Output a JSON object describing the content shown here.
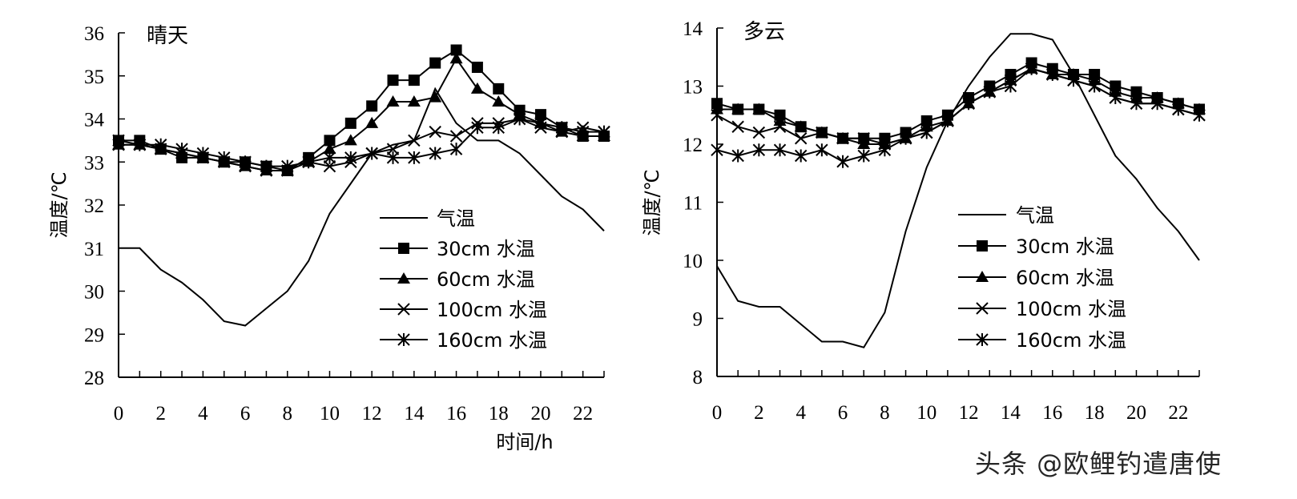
{
  "watermark": "头条 @欧鲤钓遣唐使",
  "chart_data": [
    {
      "type": "line",
      "title": "晴天",
      "xlabel": "时间/h",
      "ylabel": "温度/℃",
      "xlim": [
        0,
        23
      ],
      "ylim": [
        28,
        36
      ],
      "xticks": [
        0,
        2,
        4,
        6,
        8,
        10,
        12,
        14,
        16,
        18,
        20,
        22
      ],
      "yticks": [
        28,
        29,
        30,
        31,
        32,
        33,
        34,
        35,
        36
      ],
      "x": [
        0,
        1,
        2,
        3,
        4,
        5,
        6,
        7,
        8,
        9,
        10,
        11,
        12,
        13,
        14,
        15,
        16,
        17,
        18,
        19,
        20,
        21,
        22,
        23
      ],
      "legend_position": "center-right",
      "series": [
        {
          "name": "气温",
          "marker": "none",
          "values": [
            31.0,
            31.0,
            30.5,
            30.2,
            29.8,
            29.3,
            29.2,
            29.6,
            30.0,
            30.7,
            31.8,
            32.5,
            33.2,
            33.4,
            33.5,
            34.7,
            33.9,
            33.5,
            33.5,
            33.2,
            32.7,
            32.2,
            31.9,
            31.4
          ]
        },
        {
          "name": "30cm 水温",
          "marker": "square",
          "values": [
            33.5,
            33.5,
            33.3,
            33.1,
            33.1,
            33.0,
            33.0,
            32.9,
            32.8,
            33.1,
            33.5,
            33.9,
            34.3,
            34.9,
            34.9,
            35.3,
            35.6,
            35.2,
            34.7,
            34.2,
            34.1,
            33.8,
            33.6,
            33.6
          ]
        },
        {
          "name": "60cm 水温",
          "marker": "triangle",
          "values": [
            33.4,
            33.4,
            33.3,
            33.2,
            33.1,
            33.0,
            32.9,
            32.8,
            32.8,
            33.0,
            33.3,
            33.5,
            33.9,
            34.4,
            34.4,
            34.5,
            35.4,
            34.7,
            34.4,
            34.1,
            33.9,
            33.7,
            33.6,
            33.6
          ]
        },
        {
          "name": "100cm 水温",
          "marker": "x",
          "values": [
            33.5,
            33.4,
            33.3,
            33.2,
            33.1,
            33.0,
            32.9,
            32.8,
            32.8,
            33.0,
            32.9,
            33.0,
            33.2,
            33.3,
            33.5,
            33.7,
            33.6,
            33.9,
            33.9,
            34.0,
            33.8,
            33.7,
            33.8,
            33.7
          ]
        },
        {
          "name": "160cm 水温",
          "marker": "asterisk",
          "values": [
            33.4,
            33.4,
            33.4,
            33.3,
            33.2,
            33.1,
            33.0,
            32.9,
            32.9,
            33.0,
            33.1,
            33.1,
            33.2,
            33.1,
            33.1,
            33.2,
            33.3,
            33.8,
            33.8,
            34.0,
            33.9,
            33.8,
            33.7,
            33.7
          ]
        }
      ]
    },
    {
      "type": "line",
      "title": "多云",
      "xlabel": "",
      "ylabel": "温度/℃",
      "xlim": [
        0,
        23
      ],
      "ylim": [
        8,
        14
      ],
      "xticks": [
        0,
        2,
        4,
        6,
        8,
        10,
        12,
        14,
        16,
        18,
        20,
        22
      ],
      "yticks": [
        8,
        9,
        10,
        11,
        12,
        13,
        14
      ],
      "x": [
        0,
        1,
        2,
        3,
        4,
        5,
        6,
        7,
        8,
        9,
        10,
        11,
        12,
        13,
        14,
        15,
        16,
        17,
        18,
        19,
        20,
        21,
        22,
        23
      ],
      "legend_position": "center-right",
      "series": [
        {
          "name": "气温",
          "marker": "none",
          "values": [
            9.9,
            9.3,
            9.2,
            9.2,
            8.9,
            8.6,
            8.6,
            8.5,
            9.1,
            10.5,
            11.6,
            12.4,
            13.0,
            13.5,
            13.9,
            13.9,
            13.8,
            13.2,
            12.5,
            11.8,
            11.4,
            10.9,
            10.5,
            10.0
          ]
        },
        {
          "name": "30cm 水温",
          "marker": "square",
          "values": [
            12.7,
            12.6,
            12.6,
            12.5,
            12.3,
            12.2,
            12.1,
            12.1,
            12.1,
            12.2,
            12.4,
            12.5,
            12.8,
            13.0,
            13.2,
            13.4,
            13.3,
            13.2,
            13.2,
            13.0,
            12.9,
            12.8,
            12.7,
            12.6
          ]
        },
        {
          "name": "60cm 水温",
          "marker": "triangle",
          "values": [
            12.6,
            12.6,
            12.6,
            12.4,
            12.3,
            12.2,
            12.1,
            12.0,
            12.0,
            12.1,
            12.3,
            12.4,
            12.7,
            12.9,
            13.1,
            13.3,
            13.2,
            13.2,
            13.1,
            12.9,
            12.8,
            12.8,
            12.7,
            12.6
          ]
        },
        {
          "name": "100cm 水温",
          "marker": "x",
          "values": [
            12.5,
            12.3,
            12.2,
            12.3,
            12.1,
            12.2,
            12.1,
            12.1,
            12.0,
            12.1,
            12.2,
            12.4,
            12.7,
            12.9,
            13.1,
            13.3,
            13.2,
            13.1,
            13.0,
            12.8,
            12.7,
            12.7,
            12.6,
            12.5
          ]
        },
        {
          "name": "160cm 水温",
          "marker": "asterisk",
          "values": [
            11.9,
            11.8,
            11.9,
            11.9,
            11.8,
            11.9,
            11.7,
            11.8,
            11.9,
            12.1,
            12.2,
            12.4,
            12.7,
            12.9,
            13.0,
            13.3,
            13.2,
            13.1,
            13.0,
            12.8,
            12.7,
            12.7,
            12.6,
            12.5
          ]
        }
      ]
    }
  ]
}
